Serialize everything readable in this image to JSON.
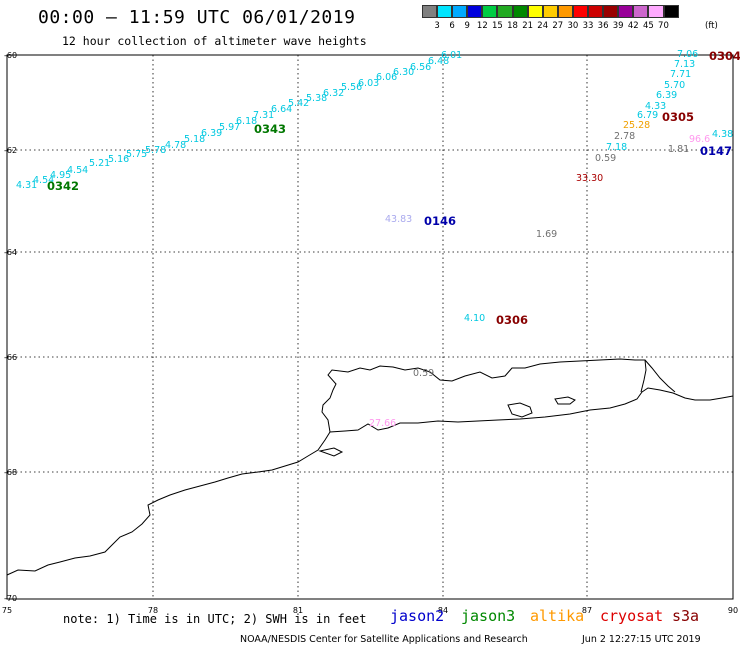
{
  "title": "00:00 – 11:59 UTC 06/01/2019",
  "subtitle": "12 hour collection of altimeter wave heights",
  "color_scale": {
    "unit": "(ft)",
    "colors": [
      "#808080",
      "#00e5ff",
      "#00aaff",
      "#0000dd",
      "#00cc44",
      "#22aa22",
      "#008800",
      "#ffff00",
      "#ffcc00",
      "#ff9900",
      "#ff0000",
      "#cc0000",
      "#990000",
      "#990099",
      "#cc66cc",
      "#ffaaff",
      "#000000"
    ],
    "labels": [
      "3",
      "6",
      "9",
      "12",
      "15",
      "18",
      "21",
      "24",
      "27",
      "30",
      "33",
      "36",
      "39",
      "42",
      "45",
      "70"
    ]
  },
  "axes": {
    "lon_ticks": [
      "75",
      "78",
      "81",
      "84",
      "87",
      "90"
    ],
    "lat_ticks": [
      "-60",
      "-62",
      "-64",
      "-66",
      "-68",
      "-70"
    ]
  },
  "wave_heights": [
    {
      "value": "4.31",
      "color": "#00c8e0"
    },
    {
      "value": "4.54",
      "color": "#00c8e0"
    },
    {
      "value": "4.95",
      "color": "#00c8e0"
    },
    {
      "value": "4.54",
      "color": "#00c8e0"
    },
    {
      "value": "5.21",
      "color": "#00c8e0"
    },
    {
      "value": "5.16",
      "color": "#00c8e0"
    },
    {
      "value": "5.75",
      "color": "#00c8e0"
    },
    {
      "value": "5.78",
      "color": "#00c8e0"
    },
    {
      "value": "4.78",
      "color": "#00c8e0"
    },
    {
      "value": "5.18",
      "color": "#00c8e0"
    },
    {
      "value": "6.39",
      "color": "#00c8e0"
    },
    {
      "value": "5.97",
      "color": "#00c8e0"
    },
    {
      "value": "6.18",
      "color": "#00c8e0"
    },
    {
      "value": "7.31",
      "color": "#00c8e0"
    },
    {
      "value": "6.64",
      "color": "#00c8e0"
    },
    {
      "value": "5.42",
      "color": "#00c8e0"
    },
    {
      "value": "5.38",
      "color": "#00c8e0"
    },
    {
      "value": "6.32",
      "color": "#00c8e0"
    },
    {
      "value": "5.56",
      "color": "#00c8e0"
    },
    {
      "value": "6.03",
      "color": "#00c8e0"
    },
    {
      "value": "6.06",
      "color": "#00c8e0"
    },
    {
      "value": "6.30",
      "color": "#00c8e0"
    },
    {
      "value": "6.56",
      "color": "#00c8e0"
    },
    {
      "value": "6.48",
      "color": "#00c8e0"
    },
    {
      "value": "6.01",
      "color": "#00c8e0"
    },
    {
      "value": "7.06",
      "color": "#00c8e0"
    },
    {
      "value": "7.13",
      "color": "#00c8e0"
    },
    {
      "value": "7.71",
      "color": "#00c8e0"
    },
    {
      "value": "5.70",
      "color": "#00c8e0"
    },
    {
      "value": "6.39",
      "color": "#00c8e0"
    },
    {
      "value": "4.33",
      "color": "#00c8e0"
    },
    {
      "value": "6.79",
      "color": "#00c8e0"
    },
    {
      "value": "25.28",
      "color": "#f0a000"
    },
    {
      "value": "2.78",
      "color": "#707070"
    },
    {
      "value": "7.18",
      "color": "#00c8e0"
    },
    {
      "value": "0.59",
      "color": "#707070"
    },
    {
      "value": "33.30",
      "color": "#aa0000"
    },
    {
      "value": "1.81",
      "color": "#707070"
    },
    {
      "value": "96.6",
      "color": "#ff99ee"
    },
    {
      "value": "4.38",
      "color": "#00c8e0"
    },
    {
      "value": "43.83",
      "color": "#aaaaee"
    },
    {
      "value": "1.69",
      "color": "#707070"
    },
    {
      "value": "4.10",
      "color": "#00c8e0"
    },
    {
      "value": "0.59",
      "color": "#707070"
    },
    {
      "value": "27.66",
      "color": "#ff99ee"
    }
  ],
  "pass_times": [
    {
      "time": "0342",
      "color": "#007700"
    },
    {
      "time": "0343",
      "color": "#007700"
    },
    {
      "time": "0146",
      "color": "#0000aa"
    },
    {
      "time": "0306",
      "color": "#880000"
    },
    {
      "time": "0305",
      "color": "#880000"
    },
    {
      "time": "0304",
      "color": "#880000"
    },
    {
      "time": "0147",
      "color": "#0000aa"
    }
  ],
  "note": "note: 1) Time is in UTC; 2) SWH is in feet",
  "legend": [
    {
      "name": "jason2",
      "color": "#0000cc"
    },
    {
      "name": "jason3",
      "color": "#008800"
    },
    {
      "name": "altika",
      "color": "#ff9900"
    },
    {
      "name": "cryosat",
      "color": "#dd0000"
    },
    {
      "name": "s3a",
      "color": "#880000"
    }
  ],
  "footer": "NOAA/NESDIS Center for Satellite Applications and Research",
  "footer_time": "Jun  2 12:27:15 UTC 2019"
}
